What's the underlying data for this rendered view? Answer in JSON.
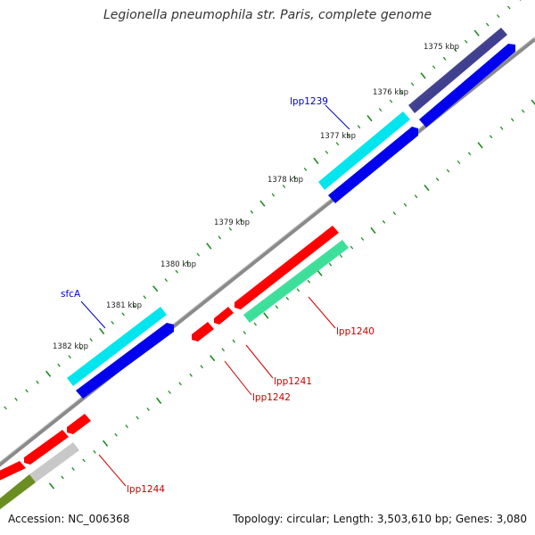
{
  "title": "Legionella pneumophila str. Paris, complete genome",
  "footer": {
    "accession": "Accession: NC_006368",
    "summary": "Topology: circular; Length: 3,503,610 bp; Genes: 3,080"
  },
  "scale": [
    "1375 kbp",
    "1376 kbp",
    "1377 kbp",
    "1378 kbp",
    "1379 kbp",
    "1380 kbp",
    "1381 kbp",
    "1382 kbp"
  ],
  "colors": {
    "forward_cds": "#0000ee",
    "reverse_cds": "#ff0000",
    "forward_gene_label": "#0000cc",
    "reverse_gene_label": "#cc0000",
    "backbone": "#808080",
    "ticks": "#1e8c1e"
  },
  "features": {
    "reverse_top": [
      {
        "color": "#3f3f8f"
      },
      {
        "color": "#00e5ee"
      },
      {
        "color": "#00e5ee"
      }
    ],
    "reverse_mid": [
      {
        "color": "#ff0000"
      },
      {
        "color": "#ff0000"
      },
      {
        "color": "#ff0000"
      },
      {
        "color": "#ff0000"
      },
      {
        "color": "#ff0000"
      },
      {
        "color": "#ff0000"
      },
      {
        "color": "#ff0000"
      }
    ],
    "forward": [
      {
        "color": "#0000ee"
      },
      {
        "color": "#0000ee"
      },
      {
        "color": "#0000ee"
      },
      {
        "color": "#3cdf9a"
      },
      {
        "color": "#c8c8c8"
      },
      {
        "color": "#6b8e23"
      }
    ]
  },
  "gene_labels": {
    "lpp1239": "lpp1239",
    "sfcA": "sfcA",
    "lpp1240": "lpp1240",
    "lpp1241": "lpp1241",
    "lpp1242": "lpp1242",
    "lpp1244": "lpp1244"
  }
}
